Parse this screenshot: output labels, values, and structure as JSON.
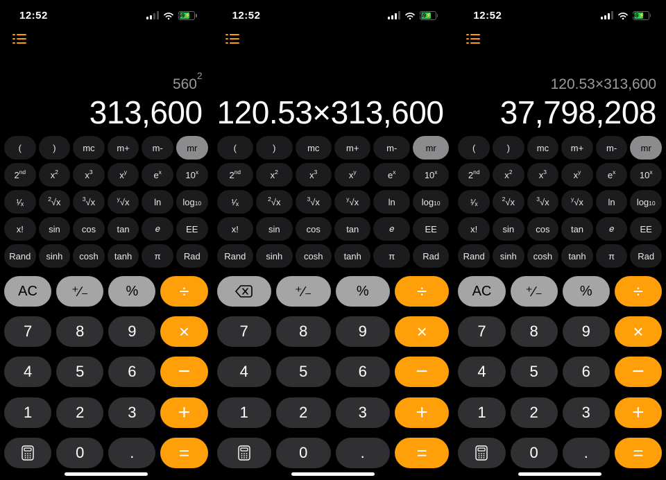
{
  "time": "12:52",
  "battery": {
    "level_label": "69",
    "percent": 69
  },
  "screens": [
    {
      "signal_bars_active": 2,
      "secondary": "560²",
      "primary": "313,600",
      "mr_highlight": true,
      "top_left_key": {
        "label": "AC",
        "mode": "ac"
      }
    },
    {
      "signal_bars_active": 3,
      "secondary": "",
      "primary": "120.53×313,600",
      "mr_highlight": true,
      "top_left_key": {
        "label": "⌫",
        "mode": "backspace"
      }
    },
    {
      "signal_bars_active": 3,
      "secondary": "120.53×313,600",
      "primary": "37,798,208",
      "mr_highlight": true,
      "top_left_key": {
        "label": "AC",
        "mode": "ac"
      }
    }
  ],
  "sci_rows": [
    [
      {
        "id": "paren-open",
        "html": "("
      },
      {
        "id": "paren-close",
        "html": ")"
      },
      {
        "id": "mc",
        "html": "mc"
      },
      {
        "id": "m-plus",
        "html": "m+"
      },
      {
        "id": "m-minus",
        "html": "m-"
      },
      {
        "id": "mr",
        "html": "mr"
      }
    ],
    [
      {
        "id": "second",
        "html": "2<sup>nd</sup>"
      },
      {
        "id": "x-squared",
        "html": "x<sup>2</sup>"
      },
      {
        "id": "x-cubed",
        "html": "x<sup>3</sup>"
      },
      {
        "id": "x-pow-y",
        "html": "x<sup>y</sup>"
      },
      {
        "id": "e-pow-x",
        "html": "e<sup>x</sup>"
      },
      {
        "id": "ten-pow-x",
        "html": "10<sup>x</sup>"
      }
    ],
    [
      {
        "id": "reciprocal",
        "html": "¹⁄ₓ"
      },
      {
        "id": "sqrt",
        "html": "<sup>2</sup>√x"
      },
      {
        "id": "cbrt",
        "html": "<sup>3</sup>√x"
      },
      {
        "id": "ythroot",
        "html": "<sup>y</sup>√x"
      },
      {
        "id": "ln",
        "html": "ln"
      },
      {
        "id": "log10",
        "html": "log<sub>10</sub>"
      }
    ],
    [
      {
        "id": "factorial",
        "html": "x!"
      },
      {
        "id": "sin",
        "html": "sin"
      },
      {
        "id": "cos",
        "html": "cos"
      },
      {
        "id": "tan",
        "html": "tan"
      },
      {
        "id": "euler-e",
        "html": "𝑒"
      },
      {
        "id": "ee",
        "html": "EE"
      }
    ],
    [
      {
        "id": "rand",
        "html": "Rand"
      },
      {
        "id": "sinh",
        "html": "sinh"
      },
      {
        "id": "cosh",
        "html": "cosh"
      },
      {
        "id": "tanh",
        "html": "tanh"
      },
      {
        "id": "pi",
        "html": "π"
      },
      {
        "id": "rad",
        "html": "Rad"
      }
    ]
  ],
  "basic_rows": [
    [
      {
        "id": "top-left",
        "kind": "light",
        "html": ""
      },
      {
        "id": "negate",
        "kind": "light",
        "html": "⁺∕₋"
      },
      {
        "id": "percent",
        "kind": "light",
        "html": "%"
      },
      {
        "id": "divide",
        "kind": "orange",
        "html": "<span class='sym'>÷</span>"
      }
    ],
    [
      {
        "id": "digit-7",
        "kind": "dark",
        "html": "7"
      },
      {
        "id": "digit-8",
        "kind": "dark",
        "html": "8"
      },
      {
        "id": "digit-9",
        "kind": "dark",
        "html": "9"
      },
      {
        "id": "multiply",
        "kind": "orange",
        "html": "<span class='sym'>×</span>"
      }
    ],
    [
      {
        "id": "digit-4",
        "kind": "dark",
        "html": "4"
      },
      {
        "id": "digit-5",
        "kind": "dark",
        "html": "5"
      },
      {
        "id": "digit-6",
        "kind": "dark",
        "html": "6"
      },
      {
        "id": "minus",
        "kind": "orange",
        "html": "<span class='sym-thin'>−</span>"
      }
    ],
    [
      {
        "id": "digit-1",
        "kind": "dark",
        "html": "1"
      },
      {
        "id": "digit-2",
        "kind": "dark",
        "html": "2"
      },
      {
        "id": "digit-3",
        "kind": "dark",
        "html": "3"
      },
      {
        "id": "plus",
        "kind": "orange",
        "html": "<span class='sym-thin'>+</span>"
      }
    ],
    [
      {
        "id": "mode-toggle",
        "kind": "dark",
        "html": "",
        "icon": "calc"
      },
      {
        "id": "digit-0",
        "kind": "dark",
        "html": "0"
      },
      {
        "id": "decimal",
        "kind": "dark",
        "html": "."
      },
      {
        "id": "equals",
        "kind": "orange",
        "html": "<span class='sym'>=</span>"
      }
    ]
  ]
}
